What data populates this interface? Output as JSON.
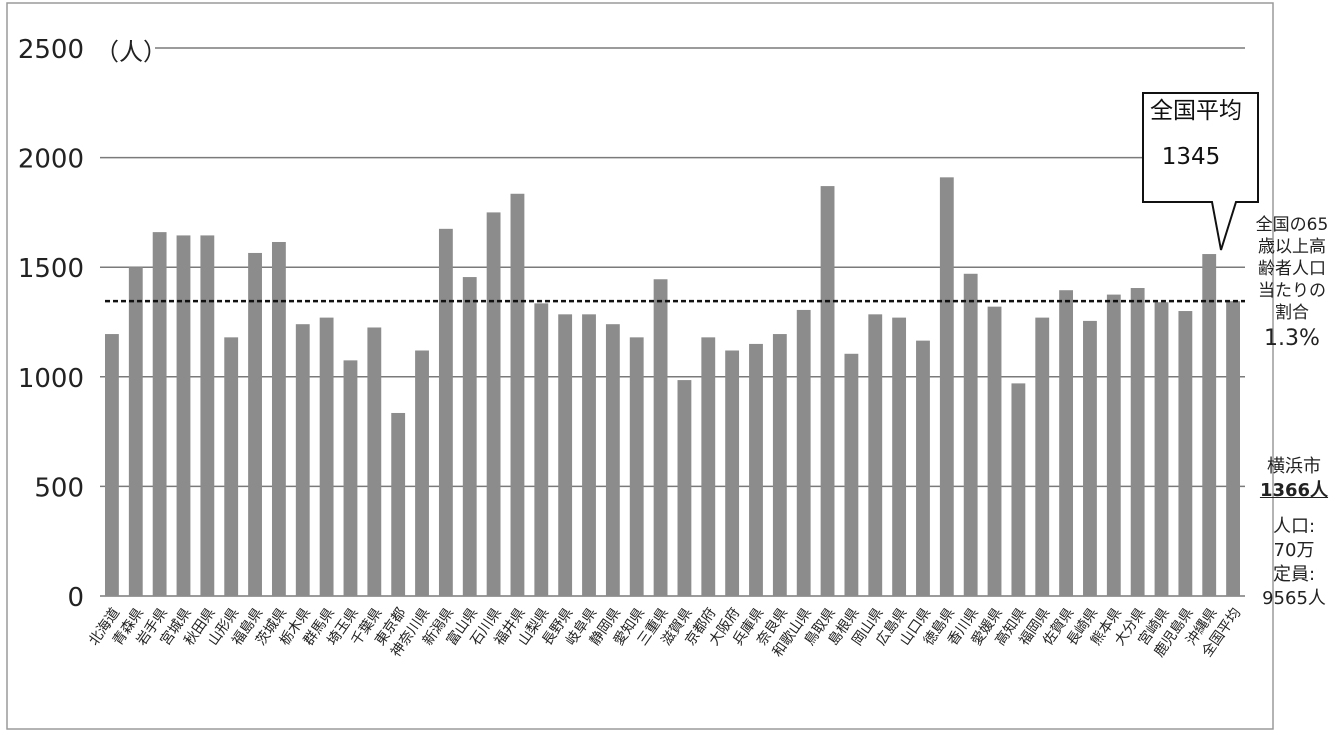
{
  "chart_data": {
    "type": "bar",
    "unit_label": "（人）",
    "categories": [
      "北海道",
      "青森県",
      "岩手県",
      "宮城県",
      "秋田県",
      "山形県",
      "福島県",
      "茨城県",
      "栃木県",
      "群馬県",
      "埼玉県",
      "千葉県",
      "東京都",
      "神奈川県",
      "新潟県",
      "富山県",
      "石川県",
      "福井県",
      "山梨県",
      "長野県",
      "岐阜県",
      "静岡県",
      "愛知県",
      "三重県",
      "滋賀県",
      "京都府",
      "大阪府",
      "兵庫県",
      "奈良県",
      "和歌山県",
      "鳥取県",
      "島根県",
      "岡山県",
      "広島県",
      "山口県",
      "徳島県",
      "香川県",
      "愛媛県",
      "高知県",
      "福岡県",
      "佐賀県",
      "長崎県",
      "熊本県",
      "大分県",
      "宮崎県",
      "鹿児島県",
      "沖縄県",
      "全国平均"
    ],
    "values": [
      1195,
      1500,
      1660,
      1645,
      1645,
      1180,
      1565,
      1615,
      1240,
      1270,
      1075,
      1225,
      835,
      1120,
      1675,
      1455,
      1750,
      1835,
      1335,
      1285,
      1285,
      1240,
      1180,
      1445,
      985,
      1180,
      1120,
      1150,
      1195,
      1305,
      1870,
      1105,
      1285,
      1270,
      1165,
      1910,
      1470,
      1320,
      970,
      1270,
      1395,
      1255,
      1375,
      1405,
      1340,
      1300,
      1560,
      1345
    ],
    "ylim": [
      0,
      2500
    ],
    "yticks": [
      0,
      500,
      1000,
      1500,
      2000,
      2500
    ],
    "average_line": 1345,
    "bar_color": "#8c8c8c",
    "grid": true
  },
  "callout": {
    "title": "全国平均",
    "value": "1345"
  },
  "right_notes": {
    "line1": "全国の65",
    "line2": "歳以上高",
    "line3": "齢者人口",
    "line4": "当たりの",
    "line5": "割合",
    "percent": "1.3%",
    "city": "横浜市",
    "city_value": "1366人",
    "pop_label": "人口:",
    "pop_value": "70万",
    "cap_label": "定員:",
    "cap_value": "9565人"
  }
}
